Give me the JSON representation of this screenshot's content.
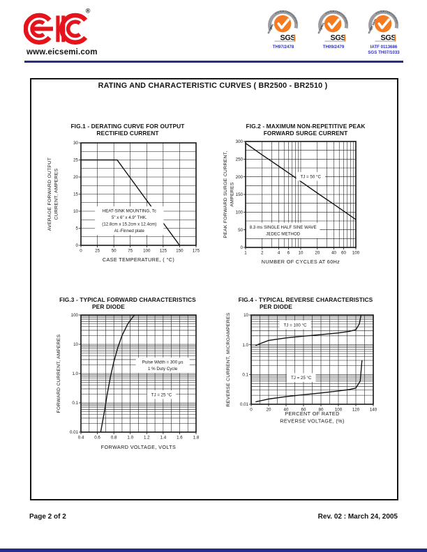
{
  "header": {
    "logo_text": "EIC",
    "registered_mark": "®",
    "website": "www.eicsemi.com",
    "certs": [
      {
        "arc_text": "SYSTEM CERTIFICATION",
        "iso_text": "ISO 9001",
        "brand": "SGS",
        "caption_lines": [
          "TH97/2478"
        ]
      },
      {
        "arc_text": "SYSTEM CERTIFICATION",
        "iso_text": "ISO 14001",
        "brand": "SGS",
        "caption_lines": [
          "TH09/2479"
        ]
      },
      {
        "arc_text": "SYSTEM CERTIFICATION",
        "iso_text": "ISO/TS 16949",
        "brand": "SGS",
        "caption_lines": [
          "IATF 0113686",
          "SGS TH07/1033"
        ]
      }
    ]
  },
  "document": {
    "box_title": "RATING AND CHARACTERISTIC CURVES  ( BR2500 - BR2510 )",
    "footer_left": "Page 2 of 2",
    "footer_right": "Rev. 02 : March 24, 2005"
  },
  "colors": {
    "brand_red": "#e4131c",
    "rule_blue": "#252e87",
    "cert_orange": "#f47b20",
    "cert_gray": "#9a9ea3",
    "cert_caption_blue": "#2b2fc6",
    "ink": "#141414"
  },
  "chart_data": [
    {
      "type": "line",
      "title": [
        "FIG.1 - DERATING CURVE FOR OUTPUT",
        "RECTIFIED CURRENT"
      ],
      "ylabel": [
        "AVERAGE FORWARD OUTPUT",
        "CURRENT, AMPERES"
      ],
      "xlabel": [
        "CASE TEMPERATURE, ( °C)"
      ],
      "xscale": "linear",
      "xmin": 0,
      "xmax": 175,
      "xgrid": 25,
      "yscale": "linear",
      "ymin": 0,
      "ymax": 30,
      "ygrid": 2.5,
      "xticks": {
        "values": [
          0,
          25,
          50,
          75,
          100,
          125,
          150,
          175
        ],
        "labels": [
          "0",
          "25",
          "50",
          "75",
          "100",
          "125",
          "150",
          "175"
        ]
      },
      "yticks": {
        "values": [
          0,
          5,
          10,
          15,
          20,
          25,
          30
        ],
        "labels": [
          "0",
          "5",
          "10",
          "15",
          "20",
          "25",
          "30"
        ]
      },
      "grid": true,
      "legend": "none",
      "series": [
        {
          "name": "average forward output current vs case temperature",
          "points": [
            [
              0,
              25
            ],
            [
              55,
              25
            ],
            [
              150,
              0
            ]
          ]
        }
      ],
      "annotations": [
        {
          "lines": [
            "HEAT-SINK MOUNTING, Tc",
            "5\" x 6\" x 4.9\" THK.",
            "(12.8cm x 15.2cm x 12.4cm)",
            "Al.-Finned plate"
          ],
          "fx": 0.42,
          "fy": 0.76
        }
      ]
    },
    {
      "type": "line",
      "title": [
        "FIG.2 - MAXIMUM NON-REPETITIVE PEAK",
        "FORWARD SURGE CURRENT"
      ],
      "ylabel": [
        "PEAK FORWARD SURGE CURRENT,",
        "AMPERES"
      ],
      "xlabel": [
        "NUMBER OF CYCLES AT 60Hz"
      ],
      "xscale": "log",
      "xmin": 1,
      "xmax": 100,
      "yscale": "linear",
      "ymin": 0,
      "ymax": 300,
      "ygrid": 25,
      "xticks": {
        "values": [
          1,
          2,
          4,
          6,
          10,
          20,
          40,
          60,
          100
        ],
        "labels": [
          "1",
          "2",
          "4",
          "6",
          "10",
          "20",
          "40",
          "60",
          "100"
        ]
      },
      "yticks": {
        "values": [
          0,
          50,
          100,
          150,
          200,
          250,
          300
        ],
        "labels": [
          "0",
          "50",
          "100",
          "150",
          "200",
          "250",
          "300"
        ]
      },
      "grid": true,
      "legend": "none",
      "series": [
        {
          "name": "peak forward surge current vs cycles",
          "points": [
            [
              1,
              295
            ],
            [
              2,
              262
            ],
            [
              4,
              230
            ],
            [
              6,
              211
            ],
            [
              10,
              187
            ],
            [
              20,
              154
            ],
            [
              40,
              122
            ],
            [
              60,
              103
            ],
            [
              100,
              79
            ]
          ]
        }
      ],
      "annotations": [
        {
          "lines": [
            "TJ = 50 °C"
          ],
          "fx": 0.59,
          "fy": 0.33
        },
        {
          "lines": [
            "8.3 ms SINGLE HALF SINE WAVE",
            "JEDEC METHOD"
          ],
          "fx": 0.34,
          "fy": 0.84
        }
      ]
    },
    {
      "type": "line",
      "title": [
        "FIG.3 - TYPICAL FORWARD CHARACTERISTICS",
        "PER DIODE"
      ],
      "ylabel": [
        "FORWARD CURRENT, AMPERES"
      ],
      "xlabel": [
        "FORWARD VOLTAGE, VOLTS"
      ],
      "xscale": "linear",
      "xmin": 0.4,
      "xmax": 1.8,
      "xgrid": 0.1,
      "yscale": "log",
      "ymin": 0.01,
      "ymax": 100,
      "xticks": {
        "values": [
          0.4,
          0.6,
          0.8,
          1.0,
          1.2,
          1.4,
          1.6,
          1.8
        ],
        "labels": [
          "0.4",
          "0.6",
          "0.8",
          "1.0",
          "1.2",
          "1.4",
          "1.6",
          "1.8"
        ]
      },
      "yticks": {
        "values": [
          0.01,
          0.1,
          1,
          10,
          100
        ],
        "labels": [
          "0.01",
          "0.1",
          "1.0",
          "10",
          "100"
        ]
      },
      "grid": true,
      "legend": "none",
      "series": [
        {
          "name": "forward current vs forward voltage",
          "points": [
            [
              0.64,
              0.01
            ],
            [
              0.66,
              0.02
            ],
            [
              0.69,
              0.06
            ],
            [
              0.72,
              0.2
            ],
            [
              0.76,
              0.8
            ],
            [
              0.8,
              2.5
            ],
            [
              0.85,
              8
            ],
            [
              0.9,
              20
            ],
            [
              0.97,
              50
            ],
            [
              1.05,
              100
            ]
          ]
        }
      ],
      "annotations": [
        {
          "lines": [
            "Pulse Width = 300 μs",
            "1 % Duty Cycle"
          ],
          "fx": 0.71,
          "fy": 0.43
        },
        {
          "lines": [
            "TJ = 25 °C"
          ],
          "fx": 0.7,
          "fy": 0.68
        }
      ]
    },
    {
      "type": "line",
      "title": [
        "FIG.4 - TYPICAL REVERSE CHARACTERISTICS",
        "PER DIODE"
      ],
      "ylabel": [
        "REVERSE CURRENT, MICROAMPERES"
      ],
      "xlabel": [
        "PERCENT OF RATED",
        "REVERSE VOLTAGE, (%)"
      ],
      "xscale": "linear",
      "xmin": 0,
      "xmax": 140,
      "xgrid": 10,
      "yscale": "log",
      "ymin": 0.01,
      "ymax": 10,
      "xticks": {
        "values": [
          0,
          20,
          40,
          60,
          80,
          100,
          120,
          140
        ],
        "labels": [
          "0",
          "20",
          "40",
          "60",
          "80",
          "100",
          "120",
          "140"
        ]
      },
      "yticks": {
        "values": [
          0.01,
          0.1,
          1,
          10
        ],
        "labels": [
          "0.01",
          "0.1",
          "1.0",
          "10"
        ]
      },
      "grid": true,
      "legend": "none",
      "series": [
        {
          "name": "TJ = 100 °C",
          "points": [
            [
              5,
              0.95
            ],
            [
              20,
              1.4
            ],
            [
              40,
              1.7
            ],
            [
              60,
              1.95
            ],
            [
              80,
              2.2
            ],
            [
              100,
              2.5
            ],
            [
              112,
              2.8
            ],
            [
              120,
              3.2
            ],
            [
              124,
              5
            ],
            [
              126,
              10
            ]
          ]
        },
        {
          "name": "TJ = 25 °C",
          "points": [
            [
              5,
              0.012
            ],
            [
              20,
              0.015
            ],
            [
              40,
              0.018
            ],
            [
              60,
              0.021
            ],
            [
              80,
              0.024
            ],
            [
              100,
              0.028
            ],
            [
              112,
              0.031
            ],
            [
              120,
              0.035
            ],
            [
              125,
              0.06
            ],
            [
              127,
              0.3
            ]
          ]
        }
      ],
      "annotations": [
        {
          "lines": [
            "TJ = 100 °C"
          ],
          "fx": 0.36,
          "fy": 0.11
        },
        {
          "lines": [
            "TJ = 25 °C"
          ],
          "fx": 0.41,
          "fy": 0.7
        }
      ]
    }
  ]
}
